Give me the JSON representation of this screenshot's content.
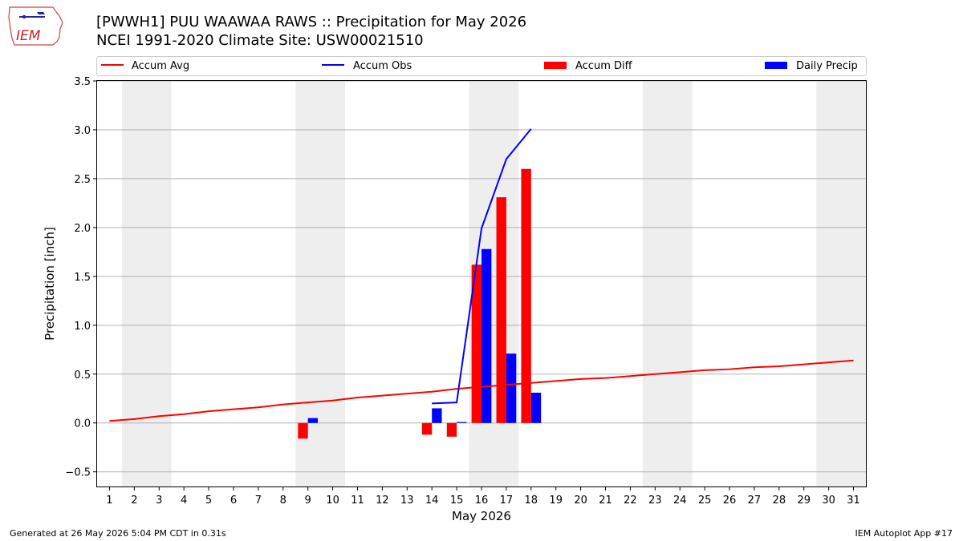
{
  "header": {
    "logo_text": "IEM",
    "title_line1": "[PWWH1] PUU WAAWAA RAWS :: Precipitation for May 2026",
    "title_line2": "NCEI 1991-2020 Climate Site: USW00021510"
  },
  "footer": {
    "generated": "Generated at 26 May 2026 5:04 PM CDT in 0.31s",
    "app": "IEM Autoplot App #17"
  },
  "colors": {
    "avg": "#ff0000",
    "obs": "#0000ff",
    "diff": "#ff0000",
    "daily": "#0000ff",
    "weekend_shade": "#eeeeee",
    "grid": "#b0b0b0"
  },
  "chart_data": {
    "type": "bar",
    "xlabel": "May 2026",
    "ylabel": "Precipitation [inch]",
    "xlim": [
      0.5,
      31.5
    ],
    "ylim": [
      -0.65,
      3.5
    ],
    "yticks": [
      -0.5,
      0.0,
      0.5,
      1.0,
      1.5,
      2.0,
      2.5,
      3.0,
      3.5
    ],
    "ytick_labels": [
      "−0.5",
      "0.0",
      "0.5",
      "1.0",
      "1.5",
      "2.0",
      "2.5",
      "3.0",
      "3.5"
    ],
    "days": [
      1,
      2,
      3,
      4,
      5,
      6,
      7,
      8,
      9,
      10,
      11,
      12,
      13,
      14,
      15,
      16,
      17,
      18,
      19,
      20,
      21,
      22,
      23,
      24,
      25,
      26,
      27,
      28,
      29,
      30,
      31
    ],
    "grid": "horizontal",
    "legend_placement": "top",
    "legend": [
      "Accum Avg",
      "Accum Obs",
      "Accum Diff",
      "Daily Precip"
    ],
    "weekend_shading": [
      [
        2,
        3
      ],
      [
        9,
        10
      ],
      [
        16,
        17
      ],
      [
        23,
        24
      ],
      [
        30,
        31
      ]
    ],
    "series": [
      {
        "name": "Accum Avg",
        "kind": "line",
        "x": [
          1,
          2,
          3,
          4,
          5,
          6,
          7,
          8,
          9,
          10,
          11,
          12,
          13,
          14,
          15,
          16,
          17,
          18,
          19,
          20,
          21,
          22,
          23,
          24,
          25,
          26,
          27,
          28,
          29,
          30,
          31
        ],
        "values": [
          0.02,
          0.04,
          0.07,
          0.09,
          0.12,
          0.14,
          0.16,
          0.19,
          0.21,
          0.23,
          0.26,
          0.28,
          0.3,
          0.32,
          0.35,
          0.37,
          0.39,
          0.41,
          0.43,
          0.45,
          0.46,
          0.48,
          0.5,
          0.52,
          0.54,
          0.55,
          0.57,
          0.58,
          0.6,
          0.62,
          0.64
        ]
      },
      {
        "name": "Accum Obs",
        "kind": "line",
        "x": [
          14,
          15,
          16,
          17,
          18
        ],
        "values": [
          0.2,
          0.21,
          1.99,
          2.7,
          3.01
        ]
      },
      {
        "name": "Accum Diff",
        "kind": "bar",
        "x": [
          9,
          14,
          15,
          16,
          17,
          18
        ],
        "values": [
          -0.16,
          -0.12,
          -0.14,
          1.62,
          2.31,
          2.6
        ]
      },
      {
        "name": "Daily Precip",
        "kind": "bar",
        "x": [
          9,
          14,
          15,
          16,
          17,
          18
        ],
        "values": [
          0.05,
          0.15,
          0.01,
          1.78,
          0.71,
          0.31
        ]
      }
    ]
  }
}
